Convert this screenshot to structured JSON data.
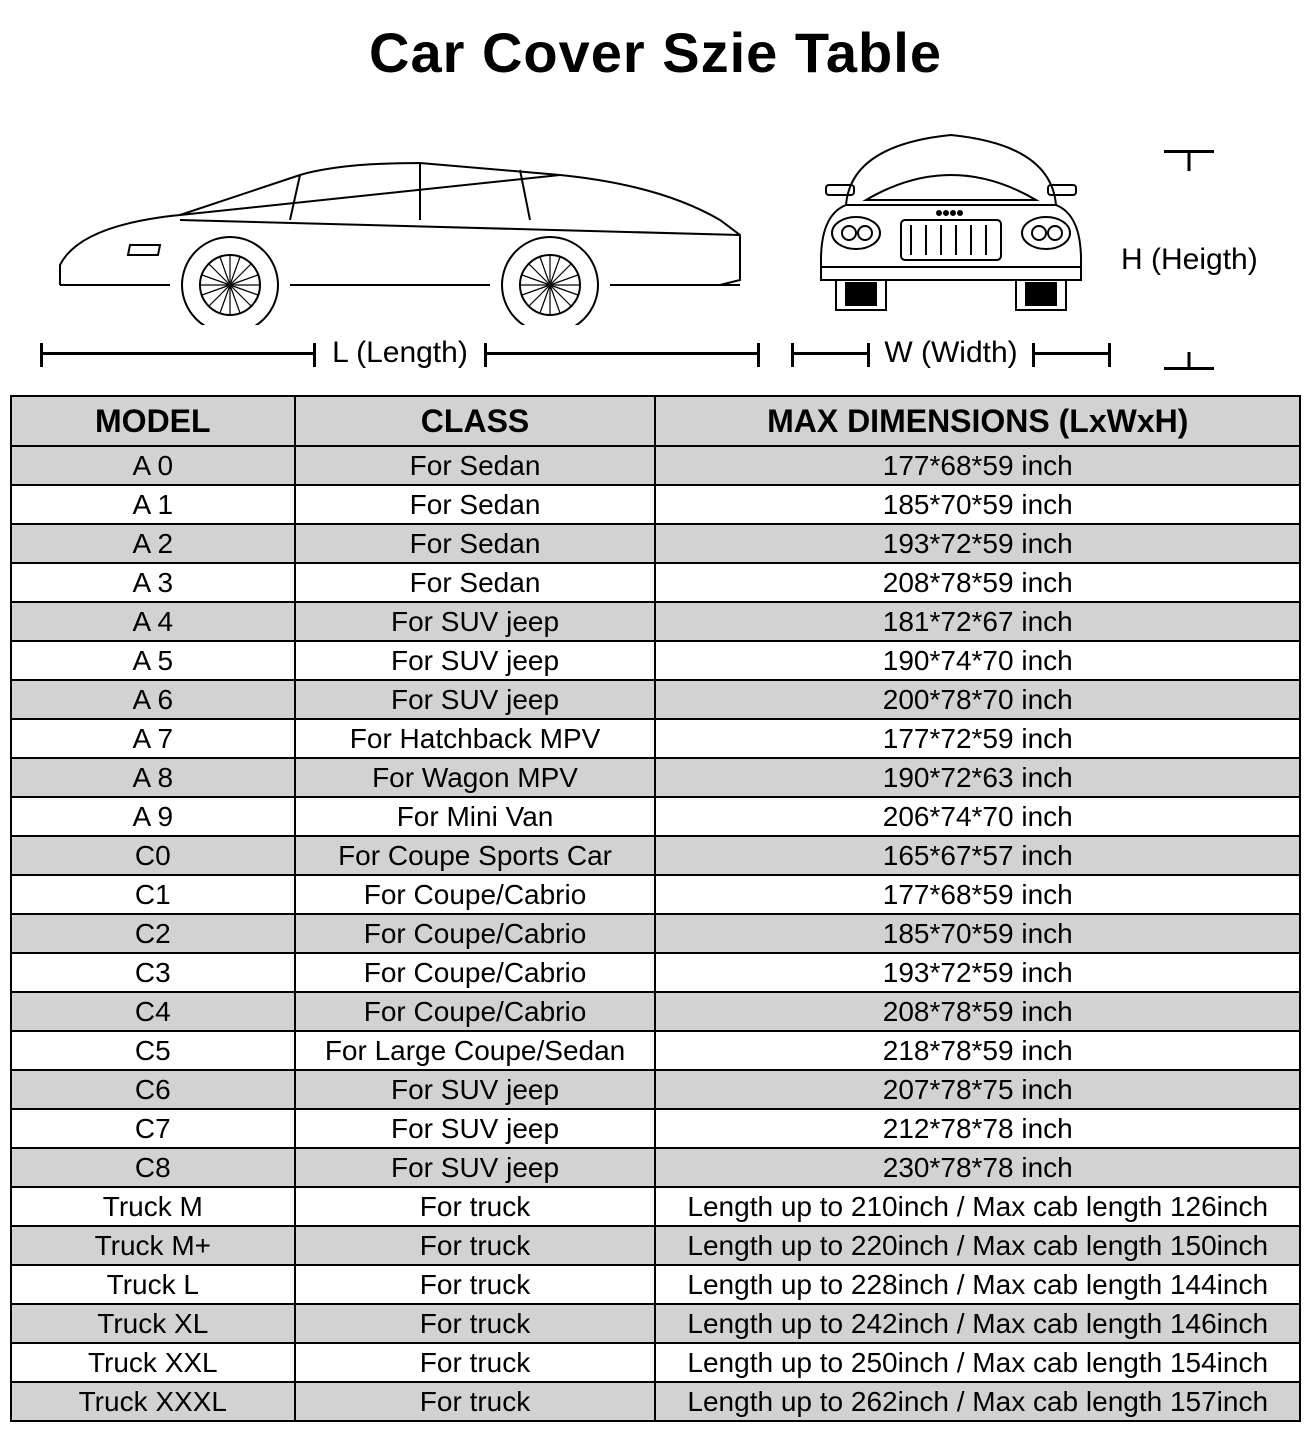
{
  "title": "Car Cover Szie Table",
  "labels": {
    "length": "L (Length)",
    "width": "W (Width)",
    "height": "H (Heigth)"
  },
  "columns": [
    "MODEL",
    "CLASS",
    "MAX DIMENSIONS (LxWxH)"
  ],
  "style": {
    "header_bg": "#d2d2d2",
    "row_shade_bg": "#d2d2d2",
    "border_color": "#000000",
    "title_fontsize": 56,
    "header_fontsize": 32,
    "cell_fontsize": 28,
    "label_fontsize": 30,
    "col_widths_pct": [
      22,
      28,
      50
    ]
  },
  "rows": [
    {
      "model": "A 0",
      "class": "For Sedan",
      "dims": "177*68*59 inch",
      "shade": true
    },
    {
      "model": "A 1",
      "class": "For Sedan",
      "dims": "185*70*59 inch",
      "shade": false
    },
    {
      "model": "A 2",
      "class": "For Sedan",
      "dims": "193*72*59 inch",
      "shade": true
    },
    {
      "model": "A 3",
      "class": "For Sedan",
      "dims": "208*78*59 inch",
      "shade": false
    },
    {
      "model": "A 4",
      "class": "For SUV jeep",
      "dims": "181*72*67 inch",
      "shade": true
    },
    {
      "model": "A 5",
      "class": "For SUV jeep",
      "dims": "190*74*70 inch",
      "shade": false
    },
    {
      "model": "A 6",
      "class": "For SUV jeep",
      "dims": "200*78*70 inch",
      "shade": true
    },
    {
      "model": "A 7",
      "class": "For Hatchback MPV",
      "dims": "177*72*59 inch",
      "shade": false
    },
    {
      "model": "A 8",
      "class": "For Wagon MPV",
      "dims": "190*72*63 inch",
      "shade": true
    },
    {
      "model": "A 9",
      "class": "For Mini Van",
      "dims": "206*74*70 inch",
      "shade": false
    },
    {
      "model": "C0",
      "class": "For Coupe Sports Car",
      "dims": "165*67*57 inch",
      "shade": true
    },
    {
      "model": "C1",
      "class": "For Coupe/Cabrio",
      "dims": "177*68*59 inch",
      "shade": false
    },
    {
      "model": "C2",
      "class": "For Coupe/Cabrio",
      "dims": "185*70*59 inch",
      "shade": true
    },
    {
      "model": "C3",
      "class": "For Coupe/Cabrio",
      "dims": "193*72*59 inch",
      "shade": false
    },
    {
      "model": "C4",
      "class": "For Coupe/Cabrio",
      "dims": "208*78*59 inch",
      "shade": true
    },
    {
      "model": "C5",
      "class": "For Large Coupe/Sedan",
      "dims": "218*78*59 inch",
      "shade": false
    },
    {
      "model": "C6",
      "class": "For SUV jeep",
      "dims": "207*78*75 inch",
      "shade": true
    },
    {
      "model": "C7",
      "class": "For SUV jeep",
      "dims": "212*78*78 inch",
      "shade": false
    },
    {
      "model": "C8",
      "class": "For SUV jeep",
      "dims": "230*78*78 inch",
      "shade": true
    },
    {
      "model": "Truck M",
      "class": "For truck",
      "dims": "Length up to 210inch / Max cab length 126inch",
      "shade": false
    },
    {
      "model": "Truck M+",
      "class": "For truck",
      "dims": "Length up to 220inch / Max cab length 150inch",
      "shade": true
    },
    {
      "model": "Truck L",
      "class": "For truck",
      "dims": "Length up to 228inch / Max cab length 144inch",
      "shade": false
    },
    {
      "model": "Truck XL",
      "class": "For truck",
      "dims": "Length up to 242inch / Max cab length 146inch",
      "shade": true
    },
    {
      "model": "Truck XXL",
      "class": "For truck",
      "dims": "Length up to 250inch / Max cab length 154inch",
      "shade": false
    },
    {
      "model": "Truck XXXL",
      "class": "For truck",
      "dims": "Length up to 262inch / Max cab length 157inch",
      "shade": true
    }
  ]
}
